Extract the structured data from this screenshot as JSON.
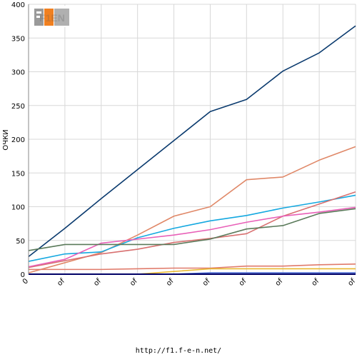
{
  "logo": {
    "text": "F1EN"
  },
  "footer": {
    "url": "http://f1.f-e-n.net/"
  },
  "chart_data": {
    "type": "line",
    "title": "",
    "xlabel": "",
    "ylabel": "ОЧКИ",
    "ylim": [
      0,
      400
    ],
    "y_ticks": [
      0,
      50,
      100,
      150,
      200,
      250,
      300,
      350,
      400
    ],
    "categories": [
      "0",
      "of",
      "of",
      "of",
      "of",
      "of",
      "of",
      "of",
      "of",
      "of"
    ],
    "grid": true,
    "legend": "none",
    "series": [
      {
        "color": "#0a3a6e",
        "values": [
          26,
          68,
          112,
          155,
          198,
          241,
          259,
          301,
          328,
          368
        ]
      },
      {
        "color": "#e08868",
        "values": [
          2,
          17,
          32,
          58,
          86,
          100,
          140,
          144,
          169,
          189
        ]
      },
      {
        "color": "#14a8e0",
        "values": [
          19,
          30,
          33,
          54,
          68,
          79,
          87,
          98,
          107,
          117
        ]
      },
      {
        "color": "#d87070",
        "values": [
          10,
          20,
          30,
          37,
          47,
          53,
          60,
          86,
          104,
          122
        ]
      },
      {
        "color": "#e860b8",
        "values": [
          11,
          22,
          46,
          52,
          58,
          66,
          77,
          86,
          92,
          99
        ]
      },
      {
        "color": "#5a7a5a",
        "values": [
          35,
          44,
          44,
          44,
          44,
          52,
          67,
          72,
          90,
          97
        ]
      },
      {
        "color": "#e07a6a",
        "values": [
          7,
          7,
          7,
          8,
          9,
          9,
          12,
          12,
          14,
          15
        ]
      },
      {
        "color": "#e8b830",
        "values": [
          0,
          0,
          0,
          0,
          4,
          8,
          8,
          8,
          8,
          8
        ]
      },
      {
        "color": "#4a6ad0",
        "values": [
          0,
          0,
          0,
          0,
          0,
          2,
          2,
          2,
          2,
          2
        ]
      }
    ]
  }
}
